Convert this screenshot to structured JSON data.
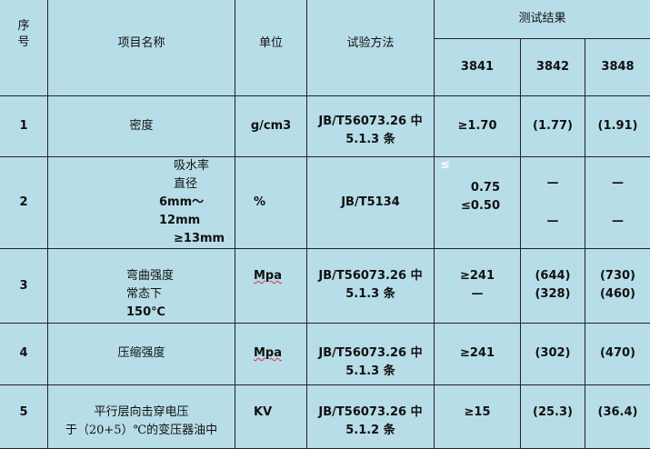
{
  "header": {
    "seq": "序\n号",
    "name": "项目名称",
    "unit": "单位",
    "method": "试验方法",
    "results": "测试结果",
    "models": [
      "3841",
      "3842",
      "3848"
    ]
  },
  "rows": [
    {
      "no": "1",
      "name": [
        "密度"
      ],
      "unit": "g/cm3",
      "method": [
        "JB/T56073.26 中",
        "5.1.3 条"
      ],
      "r3841": [
        "≥1.70"
      ],
      "r3842": [
        "(1.77)"
      ],
      "r3848": [
        "(1.91)"
      ]
    },
    {
      "no": "2",
      "name": [
        "吸水率",
        "直径",
        "6mm～12mm",
        "≥13mm"
      ],
      "unit": "%",
      "method": [
        "JB/T5134"
      ],
      "r3841": [
        "≤",
        "0.75",
        "≤0.50"
      ],
      "r3842": [
        "—",
        "—"
      ],
      "r3848": [
        "—",
        "—"
      ]
    },
    {
      "no": "3",
      "name": [
        "弯曲强度",
        "常态下",
        "150℃"
      ],
      "unit": "Mpa",
      "method": [
        "JB/T56073.26 中",
        "5.1.3 条"
      ],
      "r3841": [
        "≥241",
        "—"
      ],
      "r3842": [
        "(644)",
        "(328)"
      ],
      "r3848": [
        "(730)",
        "(460)"
      ]
    },
    {
      "no": "4",
      "name": [
        "压缩强度"
      ],
      "unit": "Mpa",
      "method": [
        "JB/T56073.26 中",
        "5.1.3 条"
      ],
      "r3841": [
        "≥241"
      ],
      "r3842": [
        "(302)"
      ],
      "r3848": [
        "(470)"
      ]
    },
    {
      "no": "5",
      "name": [
        "平行层向击穿电压",
        "于（20+5）℃的变压器油中"
      ],
      "unit": "KV",
      "method": [
        "JB/T56073.26 中",
        "5.1.2 条"
      ],
      "r3841": [
        "≥15"
      ],
      "r3842": [
        "(25.3)"
      ],
      "r3848": [
        "(36.4)"
      ]
    }
  ]
}
